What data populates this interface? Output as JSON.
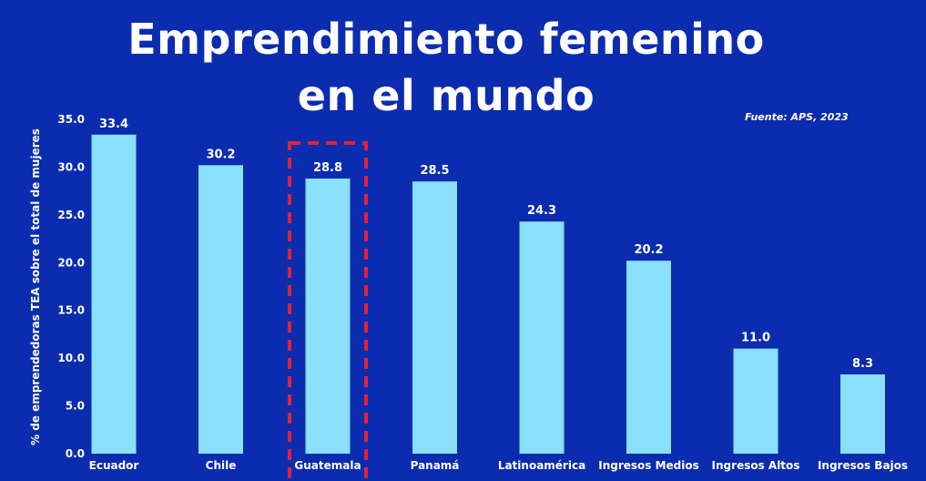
{
  "title": {
    "line1": "Emprendimiento femenino",
    "line2": "en el mundo"
  },
  "source": "Fuente: APS, 2023",
  "colors": {
    "background": "#0b2cae",
    "bar": "#89dffc",
    "highlight_box": "#e0223a",
    "text": "#ffffff"
  },
  "chart_data": {
    "type": "bar",
    "title": "Emprendimiento femenino en el mundo",
    "xlabel": "",
    "ylabel": "% de emprendedoras TEA sobre el total de mujeres",
    "ylim": [
      0,
      35
    ],
    "yticks": [
      "0.0",
      "5.0",
      "10.0",
      "15.0",
      "20.0",
      "25.0",
      "30.0",
      "35.0"
    ],
    "grid": false,
    "categories": [
      "Ecuador",
      "Chile",
      "Guatemala",
      "Panamá",
      "Latinoamérica",
      "Ingresos Medios",
      "Ingresos Altos",
      "Ingresos Bajos"
    ],
    "values": [
      33.4,
      30.2,
      28.8,
      28.5,
      24.3,
      20.2,
      11.0,
      8.3
    ],
    "value_labels": [
      "33.4",
      "30.2",
      "28.8",
      "28.5",
      "24.3",
      "20.2",
      "11.0",
      "8.3"
    ],
    "highlighted_category": "Guatemala"
  }
}
